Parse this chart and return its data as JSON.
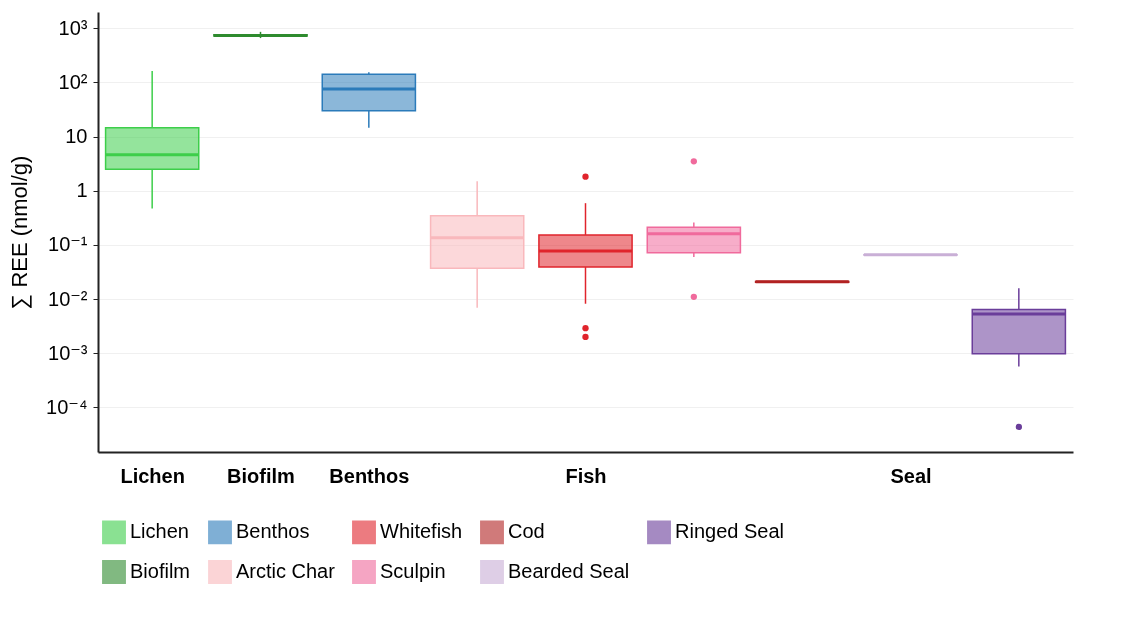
{
  "chart_data": {
    "type": "box",
    "ylabel": "∑ REE (nmol/g)",
    "categories": [
      "Lichen",
      "Biofilm",
      "Benthos",
      null,
      "Fish",
      null,
      null,
      "Seal",
      null
    ],
    "log": true,
    "grid": "y",
    "legend": "bottom",
    "ylim": [
      1.5e-05,
      2000
    ],
    "yticks": [
      {
        "value": 1000,
        "label": "10³"
      },
      {
        "value": 100,
        "label": "10²"
      },
      10,
      1,
      {
        "value": 0.1,
        "label": "10⁻¹"
      },
      {
        "value": 0.01,
        "label": "10⁻²"
      },
      {
        "value": 0.001,
        "label": "10⁻³"
      },
      {
        "value": 0.0001,
        "label": "10⁻⁴"
      }
    ],
    "series": [
      {
        "name": "Lichen",
        "color": "#3dce4a",
        "boxes": [
          {
            "low": 0.47,
            "q1": 2.5,
            "median": 4.6,
            "q3": 14.6,
            "high": 162
          },
          null,
          null,
          null,
          null,
          null,
          null,
          null,
          null
        ]
      },
      {
        "name": "Biofilm",
        "color": "#2e8b2e",
        "boxes": [
          null,
          {
            "low": 660,
            "q1": 720,
            "median": 740,
            "q3": 760,
            "high": 860
          },
          null,
          null,
          null,
          null,
          null,
          null,
          null
        ]
      },
      {
        "name": "Benthos",
        "color": "#2b7bba",
        "boxes": [
          null,
          null,
          {
            "low": 14.5,
            "q1": 30,
            "median": 76,
            "q3": 142,
            "high": 155
          },
          null,
          null,
          null,
          null,
          null,
          null
        ]
      },
      {
        "name": "Arctic Char",
        "color": "#f9b8bc",
        "boxes": [
          null,
          null,
          null,
          {
            "low": 0.0069,
            "q1": 0.037,
            "median": 0.136,
            "q3": 0.345,
            "high": 1.5
          },
          null,
          null,
          null,
          null,
          null
        ]
      },
      {
        "name": "Whitefish",
        "color": "#e0242c",
        "boxes": [
          null,
          null,
          null,
          null,
          {
            "low": 0.0082,
            "q1": 0.039,
            "median": 0.077,
            "q3": 0.153,
            "high": 0.59,
            "outliers": [
              1.82,
              0.0029,
              0.002
            ]
          },
          null,
          null,
          null,
          null
        ]
      },
      {
        "name": "Sculpin",
        "color": "#f06a9c",
        "boxes": [
          null,
          null,
          null,
          null,
          null,
          {
            "low": 0.06,
            "q1": 0.072,
            "median": 0.161,
            "q3": 0.213,
            "high": 0.26,
            "outliers": [
              3.5,
              0.011
            ]
          },
          null,
          null,
          null
        ]
      },
      {
        "name": "Cod",
        "color": "#b22222",
        "boxes": [
          null,
          null,
          null,
          null,
          null,
          null,
          {
            "low": 0.0203,
            "q1": 0.0205,
            "median": 0.0208,
            "q3": 0.021,
            "high": 0.0213
          },
          null,
          null
        ]
      },
      {
        "name": "Bearded Seal",
        "color": "#c9afd6",
        "boxes": [
          null,
          null,
          null,
          null,
          null,
          null,
          null,
          {
            "low": 0.0645,
            "q1": 0.065,
            "median": 0.0655,
            "q3": 0.066,
            "high": 0.0665
          },
          null
        ]
      },
      {
        "name": "Ringed Seal",
        "color": "#6a3d9a",
        "boxes": [
          null,
          null,
          null,
          null,
          null,
          null,
          null,
          null,
          {
            "low": 0.00057,
            "q1": 0.00098,
            "median": 0.0053,
            "q3": 0.0064,
            "high": 0.0159,
            "outliers": [
              4.36e-05
            ]
          }
        ]
      }
    ]
  }
}
